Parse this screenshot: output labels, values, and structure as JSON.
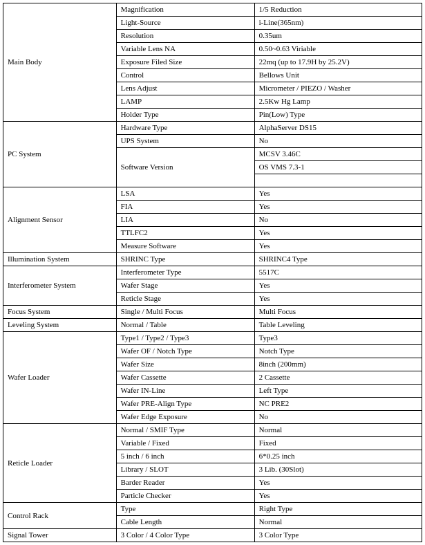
{
  "sections": [
    {
      "category": "Main Body",
      "rows": [
        {
          "param": "Magnification",
          "value": "1/5 Reduction"
        },
        {
          "param": "Light-Source",
          "value": "i-Line(365nm)"
        },
        {
          "param": "Resolution",
          "value": "0.35um"
        },
        {
          "param": "Variable Lens NA",
          "value": "0.50~0.63 Viriable"
        },
        {
          "param": "Exposure Filed Size",
          "value": "22mq (up to 17.9H by 25.2V)"
        },
        {
          "param": "Control",
          "value": "Bellows Unit"
        },
        {
          "param": "Lens Adjust",
          "value": "Micrometer / PIEZO / Washer"
        },
        {
          "param": "LAMP",
          "value": "2.5Kw Hg Lamp"
        },
        {
          "param": "Holder Type",
          "value": "Pin(Low) Type"
        }
      ]
    },
    {
      "category": "PC System",
      "rows": [
        {
          "param": "Hardware Type",
          "value": "AlphaServer DS15"
        },
        {
          "param": "UPS System",
          "value": "No"
        },
        {
          "param": "Software Version",
          "value": "MCSV 3.46C",
          "rowspan": 3
        },
        {
          "param": null,
          "value": "OS VMS 7.3-1"
        },
        {
          "param": null,
          "value": ""
        }
      ]
    },
    {
      "category": "Alignment Sensor",
      "rows": [
        {
          "param": "LSA",
          "value": "Yes"
        },
        {
          "param": "FIA",
          "value": "Yes"
        },
        {
          "param": "LIA",
          "value": "No"
        },
        {
          "param": "TTLFC2",
          "value": "Yes"
        },
        {
          "param": "Measure Software",
          "value": "Yes"
        }
      ]
    },
    {
      "category": "Illumination System",
      "rows": [
        {
          "param": "SHRINC Type",
          "value": "SHRINC4 Type"
        }
      ]
    },
    {
      "category": "Interferometer System",
      "rows": [
        {
          "param": "Interferometer Type",
          "value": "5517C"
        },
        {
          "param": "Wafer Stage",
          "value": "Yes"
        },
        {
          "param": "Reticle Stage",
          "value": "Yes"
        }
      ]
    },
    {
      "category": "Focus System",
      "rows": [
        {
          "param": "Single / Multi Focus",
          "value": "Multi Focus"
        }
      ]
    },
    {
      "category": "Leveling System",
      "rows": [
        {
          "param": "Normal / Table",
          "value": "Table Leveling"
        }
      ]
    },
    {
      "category": "Wafer Loader",
      "rows": [
        {
          "param": "Type1 / Type2 / Type3",
          "value": "Type3"
        },
        {
          "param": "Wafer OF / Notch Type",
          "value": "Notch Type"
        },
        {
          "param": "Wafer Size",
          "value": "8inch (200mm)"
        },
        {
          "param": "Wafer Cassette",
          "value": "2 Cassette"
        },
        {
          "param": "Wafer IN-Line",
          "value": "Left Type"
        },
        {
          "param": "Wafer PRE-Align Type",
          "value": "NC PRE2"
        },
        {
          "param": "Wafer Edge Exposure",
          "value": "No"
        }
      ]
    },
    {
      "category": "Reticle Loader",
      "rows": [
        {
          "param": "Normal / SMIF Type",
          "value": "Normal"
        },
        {
          "param": "Variable / Fixed",
          "value": "Fixed"
        },
        {
          "param": "5 inch / 6 inch",
          "value": "6*0.25 inch"
        },
        {
          "param": "Library / SLOT",
          "value": "3 Lib. (30Slot)"
        },
        {
          "param": "Barder Reader",
          "value": "Yes"
        },
        {
          "param": "Particle Checker",
          "value": "Yes"
        }
      ]
    },
    {
      "category": "Control Rack",
      "rows": [
        {
          "param": "Type",
          "value": "Right Type"
        },
        {
          "param": "Cable Length",
          "value": "Normal"
        }
      ]
    },
    {
      "category": "Signal Tower",
      "rows": [
        {
          "param": "3 Color / 4 Color Type",
          "value": "3 Color Type"
        }
      ]
    }
  ]
}
